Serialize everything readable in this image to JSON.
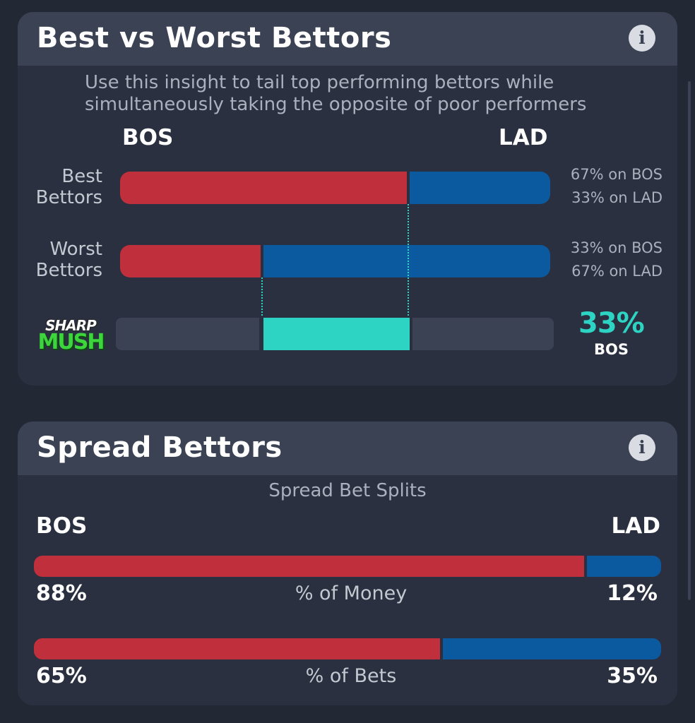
{
  "card1": {
    "title": "Best vs Worst Bettors",
    "info_icon": "info-icon",
    "description_line1": "Use this insight to tail top performing bettors while",
    "description_line2": "simultaneously taking the opposite of poor performers",
    "team_left": "BOS",
    "team_right": "LAD",
    "rows": [
      {
        "label_line1": "Best",
        "label_line2": "Bettors",
        "left_pct": 67,
        "right_pct": 33,
        "note_line1": "67% on BOS",
        "note_line2": "33% on LAD"
      },
      {
        "label_line1": "Worst",
        "label_line2": "Bettors",
        "left_pct": 33,
        "right_pct": 67,
        "note_line1": "33% on BOS",
        "note_line2": "67% on LAD"
      }
    ],
    "sharp_mush": {
      "logo_top": "SHARP",
      "logo_bottom": "MUSH",
      "value_text": "33%",
      "team": "BOS",
      "gap_pct": 33
    }
  },
  "card2": {
    "title": "Spread Bettors",
    "info_icon": "info-icon",
    "section_label": "Spread Bet Splits",
    "team_left": "BOS",
    "team_right": "LAD",
    "splits": [
      {
        "label": "% of Money",
        "left_pct": 88,
        "right_pct": 12,
        "left_text": "88%",
        "right_text": "12%"
      },
      {
        "label": "% of Bets",
        "left_pct": 65,
        "right_pct": 35,
        "left_text": "65%",
        "right_text": "35%"
      }
    ]
  },
  "colors": {
    "bos": "#c0303c",
    "lad": "#0b5aa0",
    "accent": "#2dd4c4",
    "card": "#2a3040",
    "header": "#3a4253"
  }
}
